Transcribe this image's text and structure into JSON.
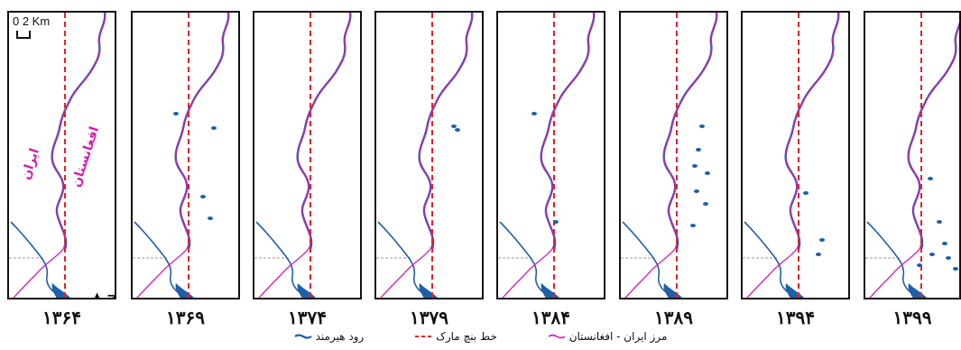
{
  "panels": [
    {
      "year": "۱۳۶۴"
    },
    {
      "year": "۱۳۶۹"
    },
    {
      "year": "۱۳۷۴"
    },
    {
      "year": "۱۳۷۹"
    },
    {
      "year": "۱۳۸۴"
    },
    {
      "year": "۱۳۸۹"
    },
    {
      "year": "۱۳۹۴"
    },
    {
      "year": "۱۳۹۹"
    }
  ],
  "scale": {
    "text": "0  2 Km"
  },
  "labels": {
    "iran": "ایران",
    "afghanistan": "افغانستان"
  },
  "north_arrow": "N",
  "legend": [
    {
      "label": "مرز ایران - افغانستان",
      "type": "border",
      "color": "#d31fb0"
    },
    {
      "label": "خط بنچ مارک",
      "type": "benchmark",
      "color": "#e0232a"
    },
    {
      "label": "رود هیرمند",
      "type": "river",
      "color": "#1f5fa8"
    }
  ],
  "colors": {
    "border": "#d31fb0",
    "benchmark": "#e0232a",
    "river": "#1f5fa8",
    "frame": "#111111"
  }
}
